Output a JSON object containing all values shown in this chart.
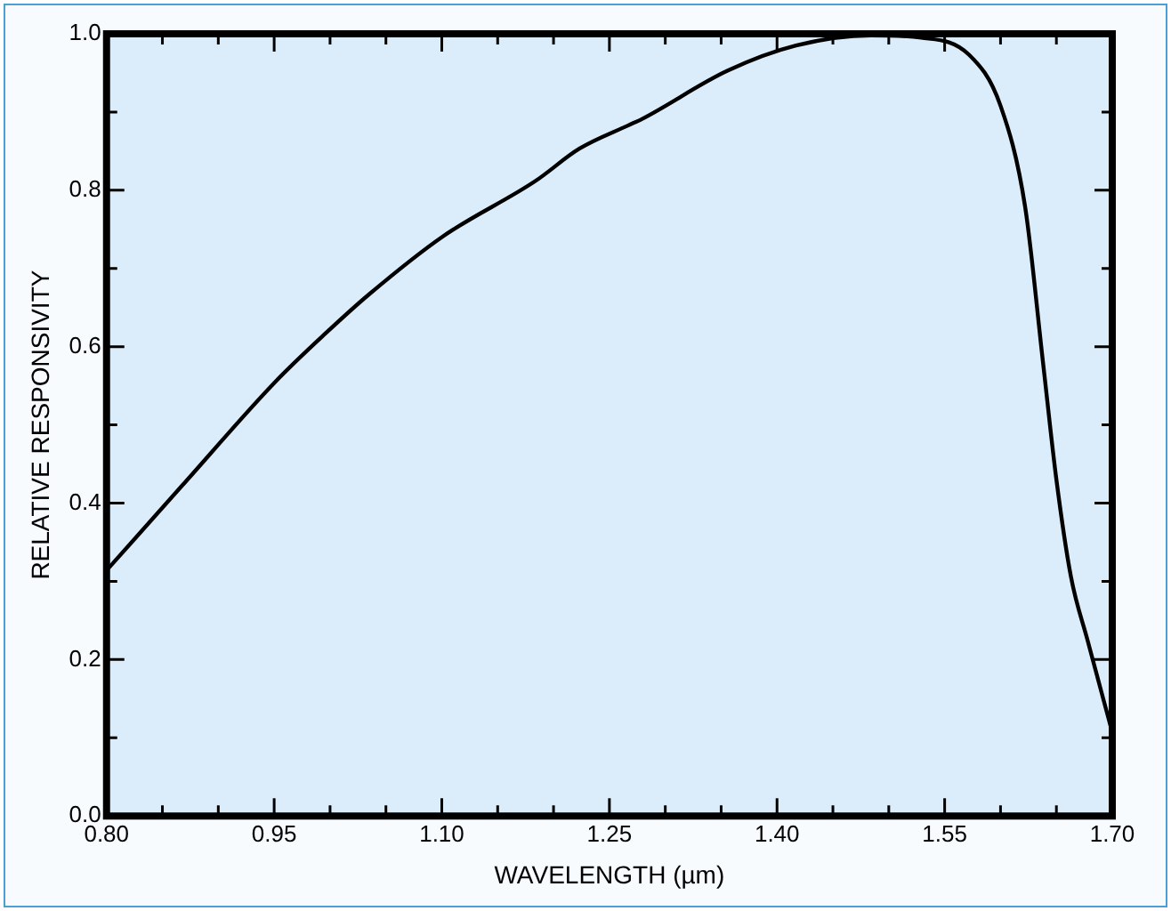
{
  "chart_data": {
    "type": "line",
    "xlabel": "WAVELENGTH (µm)",
    "ylabel": "RELATIVE RESPONSIVITY",
    "x": [
      0.8,
      0.868,
      0.951,
      0.996,
      1.035,
      1.101,
      1.184,
      1.223,
      1.267,
      1.279,
      1.356,
      1.417,
      1.484,
      1.529,
      1.572,
      1.6,
      1.622,
      1.638,
      1.65,
      1.663,
      1.678,
      1.7
    ],
    "series": [
      {
        "color": "#000000",
        "values": [
          0.314,
          0.423,
          0.555,
          0.617,
          0.667,
          0.741,
          0.812,
          0.853,
          0.883,
          0.891,
          0.953,
          0.985,
          0.998,
          0.995,
          0.973,
          0.908,
          0.779,
          0.58,
          0.43,
          0.306,
          0.224,
          0.107
        ]
      }
    ],
    "xlim": [
      0.8,
      1.7
    ],
    "xticks": [
      {
        "value": 0.8,
        "label": "0.80"
      },
      {
        "value": 0.85,
        "label": null
      },
      {
        "value": 0.9,
        "label": null
      },
      {
        "value": 0.95,
        "label": "0.95"
      },
      {
        "value": 1.0,
        "label": null
      },
      {
        "value": 1.05,
        "label": null
      },
      {
        "value": 1.1,
        "label": "1.10"
      },
      {
        "value": 1.15,
        "label": null
      },
      {
        "value": 1.2,
        "label": null
      },
      {
        "value": 1.25,
        "label": "1.25"
      },
      {
        "value": 1.3,
        "label": null
      },
      {
        "value": 1.35,
        "label": null
      },
      {
        "value": 1.4,
        "label": "1.40"
      },
      {
        "value": 1.45,
        "label": null
      },
      {
        "value": 1.5,
        "label": null
      },
      {
        "value": 1.55,
        "label": "1.55"
      },
      {
        "value": 1.6,
        "label": null
      },
      {
        "value": 1.65,
        "label": null
      },
      {
        "value": 1.7,
        "label": "1.70"
      }
    ],
    "ylim": [
      0,
      1.0
    ],
    "yticks": [
      {
        "value": 0,
        "label": "0.0"
      },
      {
        "value": 0.1,
        "label": null
      },
      0.2,
      {
        "value": 0.3,
        "label": null
      },
      0.4,
      {
        "value": 0.5,
        "label": null
      },
      0.6,
      {
        "value": 0.7,
        "label": null
      },
      0.8,
      {
        "value": 0.9,
        "label": null
      },
      {
        "value": 1.0,
        "label": "1.0"
      }
    ],
    "grid": false,
    "legend": false,
    "marker": "none",
    "line_style": "solid"
  }
}
